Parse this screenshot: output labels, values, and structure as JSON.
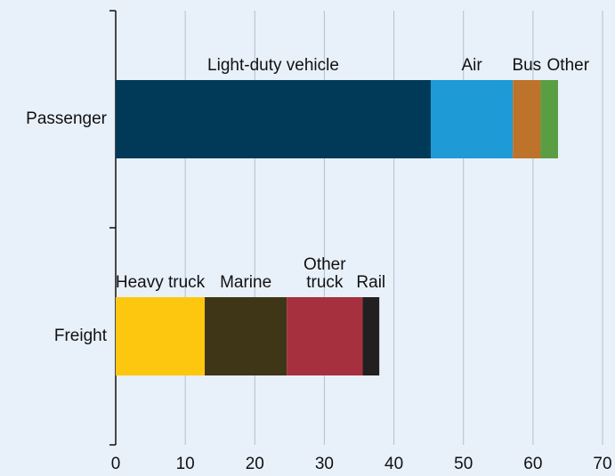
{
  "chart_data": {
    "type": "stacked_barh",
    "categories": [
      "Passenger",
      "Freight"
    ],
    "series": [
      {
        "name": "Light-duty vehicle",
        "color": "#003a58",
        "label_color": "#003a58",
        "values": [
          45.3,
          null
        ]
      },
      {
        "name": "Air",
        "color": "#1e9ad6",
        "label_color": "#1e9ad6",
        "values": [
          11.8,
          null
        ]
      },
      {
        "name": "Bus",
        "color": "#bd732a",
        "label_color": "#bd732a",
        "values": [
          4.0,
          null
        ]
      },
      {
        "name": "Other",
        "color": "#5a9e43",
        "label_color": "#5a9e43",
        "values": [
          2.5,
          null
        ]
      },
      {
        "name": "Heavy truck",
        "color": "#fdc70f",
        "label_color": "#111111",
        "values": [
          null,
          12.8
        ]
      },
      {
        "name": "Marine",
        "color": "#3f3618",
        "label_color": "#3f3618",
        "values": [
          null,
          11.8
        ]
      },
      {
        "name": "Other truck",
        "color": "#a6303e",
        "label_color": "#a6303e",
        "values": [
          null,
          10.9
        ]
      },
      {
        "name": "Rail",
        "color": "#231f20",
        "label_color": "#111111",
        "values": [
          null,
          2.4
        ]
      }
    ],
    "xlim": [
      0,
      70
    ],
    "xticks": [
      0,
      10,
      20,
      30,
      40,
      50,
      60,
      70
    ],
    "grid": true
  }
}
